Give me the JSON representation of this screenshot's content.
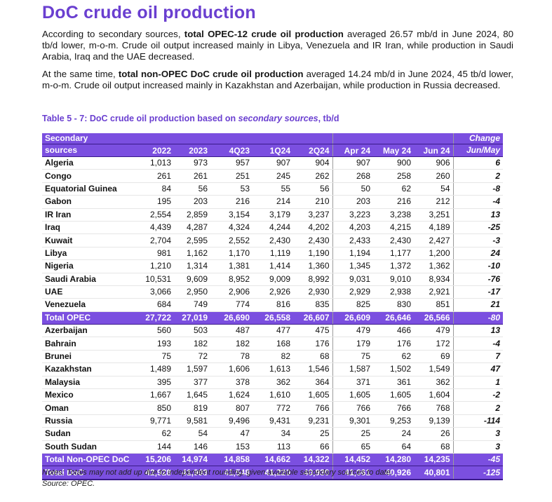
{
  "heading": "DoC crude oil production",
  "paragraph1": {
    "pre": "According to secondary sources, ",
    "bold": "total OPEC-12 crude oil production",
    "post": " averaged 26.57 mb/d in June 2024, 80 tb/d lower, m-o-m. Crude oil output increased mainly in Libya, Venezuela and IR Iran, while production in Saudi Arabia, Iraq and the UAE decreased."
  },
  "paragraph2": {
    "pre": "At the same time, ",
    "bold": "total non-OPEC DoC crude oil production",
    "post": " averaged 14.24 mb/d in June 2024, 45 tb/d lower, m-o-m. Crude oil output increased mainly in Kazakhstan and Azerbaijan, while production in Russia decreased."
  },
  "table_caption": {
    "pre": "Table 5 - 7: DoC crude oil production based on ",
    "italic": "secondary sources",
    "post": ", tb/d"
  },
  "table": {
    "header": {
      "source_line1": "Secondary",
      "source_line2": "sources",
      "columns": [
        "2022",
        "2023",
        "4Q23",
        "1Q24",
        "2Q24",
        "Apr 24",
        "May 24",
        "Jun 24"
      ],
      "change_line1": "Change",
      "change_line2": "Jun/May"
    },
    "opec_rows": [
      {
        "name": "Algeria",
        "values": [
          "1,013",
          "973",
          "957",
          "907",
          "904",
          "907",
          "900",
          "906"
        ],
        "change": "6"
      },
      {
        "name": "Congo",
        "values": [
          "261",
          "261",
          "251",
          "245",
          "262",
          "268",
          "258",
          "260"
        ],
        "change": "2"
      },
      {
        "name": "Equatorial Guinea",
        "values": [
          "84",
          "56",
          "53",
          "55",
          "56",
          "50",
          "62",
          "54"
        ],
        "change": "-8"
      },
      {
        "name": "Gabon",
        "values": [
          "195",
          "203",
          "216",
          "214",
          "210",
          "203",
          "216",
          "212"
        ],
        "change": "-4"
      },
      {
        "name": "IR Iran",
        "values": [
          "2,554",
          "2,859",
          "3,154",
          "3,179",
          "3,237",
          "3,223",
          "3,238",
          "3,251"
        ],
        "change": "13"
      },
      {
        "name": "Iraq",
        "values": [
          "4,439",
          "4,287",
          "4,324",
          "4,244",
          "4,202",
          "4,203",
          "4,215",
          "4,189"
        ],
        "change": "-25"
      },
      {
        "name": "Kuwait",
        "values": [
          "2,704",
          "2,595",
          "2,552",
          "2,430",
          "2,430",
          "2,433",
          "2,430",
          "2,427"
        ],
        "change": "-3"
      },
      {
        "name": "Libya",
        "values": [
          "981",
          "1,162",
          "1,170",
          "1,119",
          "1,190",
          "1,194",
          "1,177",
          "1,200"
        ],
        "change": "24"
      },
      {
        "name": "Nigeria",
        "values": [
          "1,210",
          "1,314",
          "1,381",
          "1,414",
          "1,360",
          "1,345",
          "1,372",
          "1,362"
        ],
        "change": "-10"
      },
      {
        "name": "Saudi Arabia",
        "values": [
          "10,531",
          "9,609",
          "8,952",
          "9,009",
          "8,992",
          "9,031",
          "9,010",
          "8,934"
        ],
        "change": "-76"
      },
      {
        "name": "UAE",
        "values": [
          "3,066",
          "2,950",
          "2,906",
          "2,926",
          "2,930",
          "2,929",
          "2,938",
          "2,921"
        ],
        "change": "-17"
      },
      {
        "name": "Venezuela",
        "values": [
          "684",
          "749",
          "774",
          "816",
          "835",
          "825",
          "830",
          "851"
        ],
        "change": "21"
      }
    ],
    "total_opec": {
      "name": "Total OPEC",
      "values": [
        "27,722",
        "27,019",
        "26,690",
        "26,558",
        "26,607",
        "26,609",
        "26,646",
        "26,566"
      ],
      "change": "-80"
    },
    "non_opec_rows": [
      {
        "name": "Azerbaijan",
        "values": [
          "560",
          "503",
          "487",
          "477",
          "475",
          "479",
          "466",
          "479"
        ],
        "change": "13"
      },
      {
        "name": "Bahrain",
        "values": [
          "193",
          "182",
          "182",
          "168",
          "176",
          "179",
          "176",
          "172"
        ],
        "change": "-4"
      },
      {
        "name": "Brunei",
        "values": [
          "75",
          "72",
          "78",
          "82",
          "68",
          "75",
          "62",
          "69"
        ],
        "change": "7"
      },
      {
        "name": "Kazakhstan",
        "values": [
          "1,489",
          "1,597",
          "1,606",
          "1,613",
          "1,546",
          "1,587",
          "1,502",
          "1,549"
        ],
        "change": "47"
      },
      {
        "name": "Malaysia",
        "values": [
          "395",
          "377",
          "378",
          "362",
          "364",
          "371",
          "361",
          "362"
        ],
        "change": "1"
      },
      {
        "name": "Mexico",
        "values": [
          "1,667",
          "1,645",
          "1,624",
          "1,610",
          "1,605",
          "1,605",
          "1,605",
          "1,604"
        ],
        "change": "-2"
      },
      {
        "name": "Oman",
        "values": [
          "850",
          "819",
          "807",
          "772",
          "766",
          "766",
          "766",
          "768"
        ],
        "change": "2"
      },
      {
        "name": "Russia",
        "values": [
          "9,771",
          "9,581",
          "9,496",
          "9,431",
          "9,231",
          "9,301",
          "9,253",
          "9,139"
        ],
        "change": "-114"
      },
      {
        "name": "Sudan",
        "values": [
          "62",
          "54",
          "47",
          "34",
          "25",
          "25",
          "24",
          "26"
        ],
        "change": "3"
      },
      {
        "name": "South Sudan",
        "values": [
          "144",
          "146",
          "153",
          "113",
          "66",
          "65",
          "64",
          "68"
        ],
        "change": "3"
      }
    ],
    "total_non_opec": {
      "name": "Total Non-OPEC DoC",
      "values": [
        "15,206",
        "14,974",
        "14,858",
        "14,662",
        "14,322",
        "14,452",
        "14,280",
        "14,235"
      ],
      "change": "-45"
    },
    "total_doc": {
      "name": "Total DoC",
      "values": [
        "42,928",
        "41,993",
        "41,548",
        "41,220",
        "40,930",
        "41,061",
        "40,926",
        "40,801"
      ],
      "change": "-125"
    }
  },
  "notes": "Notes: Totals may not add up due to independent rounding, given available secondary sources to date.",
  "source": "Source: OPEC.",
  "colors": {
    "accent": "#7b4fe0",
    "heading": "#6a3fd0"
  }
}
